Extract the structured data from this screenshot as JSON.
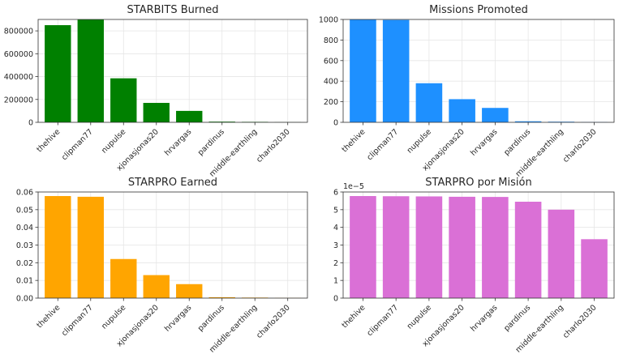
{
  "chart_data": [
    {
      "type": "bar",
      "title": "STARBITS Burned",
      "color": "#008000",
      "categories": [
        "thehive",
        "clipman77",
        "nupulse",
        "xjonasjonas20",
        "hrvargas",
        "pardinus",
        "middle-earthling",
        "charlo2030"
      ],
      "values": [
        850000,
        900000,
        385000,
        170000,
        100000,
        6000,
        4000,
        1500
      ],
      "ylim": [
        0,
        900000
      ],
      "yticks": [
        0,
        200000,
        400000,
        600000,
        800000
      ],
      "ytick_labels": [
        "0",
        "200000",
        "400000",
        "600000",
        "800000"
      ],
      "grid": true
    },
    {
      "type": "bar",
      "title": "Missions Promoted",
      "color": "#1e90ff",
      "categories": [
        "thehive",
        "clipman77",
        "nupulse",
        "xjonasjonas20",
        "hrvargas",
        "pardinus",
        "middle-earthling",
        "charlo2030"
      ],
      "values": [
        1000,
        995,
        380,
        225,
        140,
        10,
        6,
        2
      ],
      "ylim": [
        0,
        1000
      ],
      "yticks": [
        0,
        200,
        400,
        600,
        800,
        1000
      ],
      "ytick_labels": [
        "0",
        "200",
        "400",
        "600",
        "800",
        "1000"
      ],
      "grid": true
    },
    {
      "type": "bar",
      "title": "STARPRO Earned",
      "color": "#ffa500",
      "categories": [
        "thehive",
        "clipman77",
        "nupulse",
        "xjonasjonas20",
        "hrvargas",
        "pardinus",
        "middle-earthling",
        "charlo2030"
      ],
      "values": [
        0.0577,
        0.0573,
        0.0221,
        0.013,
        0.0079,
        0.0005,
        0.0003,
        0.0001
      ],
      "ylim": [
        0,
        0.06
      ],
      "yticks": [
        0,
        0.01,
        0.02,
        0.03,
        0.04,
        0.05,
        0.06
      ],
      "ytick_labels": [
        "0.00",
        "0.01",
        "0.02",
        "0.03",
        "0.04",
        "0.05",
        "0.06"
      ],
      "grid": true
    },
    {
      "type": "bar",
      "title": "STARPRO por Misión",
      "color": "#da70d6",
      "offset_label": "1e−5",
      "categories": [
        "thehive",
        "clipman77",
        "nupulse",
        "xjonasjonas20",
        "hrvargas",
        "pardinus",
        "middle-earthling",
        "charlo2030"
      ],
      "values": [
        5.77e-05,
        5.76e-05,
        5.75e-05,
        5.73e-05,
        5.72e-05,
        5.45e-05,
        5e-05,
        3.33e-05
      ],
      "ylim": [
        0,
        6e-05
      ],
      "yticks": [
        0,
        1e-05,
        2e-05,
        3e-05,
        4e-05,
        5e-05,
        6e-05
      ],
      "ytick_labels": [
        "0",
        "1",
        "2",
        "3",
        "4",
        "5",
        "6"
      ],
      "grid": true
    }
  ]
}
